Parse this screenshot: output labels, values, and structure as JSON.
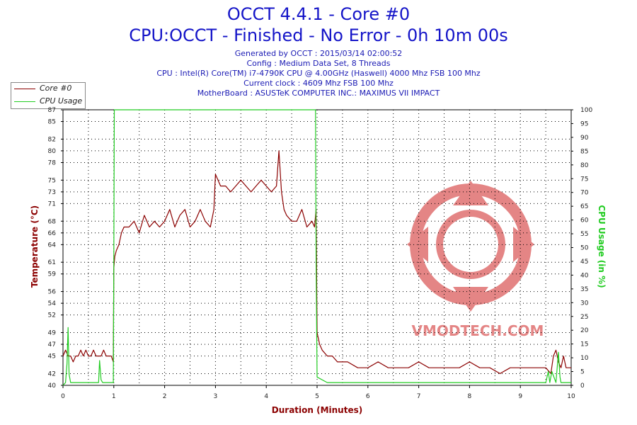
{
  "header": {
    "title": "OCCT 4.4.1 - Core #0",
    "subtitle": "CPU:OCCT - Finished - No Error - 0h 10m 00s",
    "info_lines": [
      "Generated by OCCT : 2015/03/14 02:00:52",
      "Config : Medium Data Set, 8 Threads",
      "CPU : Intel(R) Core(TM) i7-4790K CPU @ 4.00GHz (Haswell) 4000 Mhz FSB 100 Mhz",
      "Current clock : 4609 Mhz FSB 100 Mhz",
      "MotherBoard : ASUSTeK COMPUTER INC.: MAXIMUS VII IMPACT"
    ]
  },
  "watermark_text": "VMODTECH.COM",
  "colors": {
    "temp": "#8b0000",
    "cpu": "#22cc22",
    "title": "#1414c8",
    "grid": "#000000",
    "watermark": "#e07070"
  },
  "chart_data": {
    "type": "line",
    "xlabel": "Duration (Minutes)",
    "ylabel": "Temperature (°C)",
    "y2label": "CPU Usage (in %)",
    "xlim": [
      0,
      10
    ],
    "ylim": [
      40,
      87
    ],
    "y2lim": [
      0,
      100
    ],
    "x_ticks": [
      "0",
      "1",
      "2",
      "3",
      "4",
      "5",
      "6",
      "7",
      "8",
      "9",
      "10"
    ],
    "y_ticks": [
      40,
      42,
      45,
      47,
      49,
      52,
      54,
      56,
      59,
      61,
      64,
      66,
      68,
      71,
      73,
      75,
      78,
      80,
      82,
      85,
      87
    ],
    "y2_ticks": [
      0,
      5,
      10,
      15,
      20,
      25,
      30,
      35,
      40,
      45,
      50,
      55,
      60,
      65,
      70,
      75,
      80,
      85,
      90,
      95,
      100
    ],
    "grid": true,
    "legend_position": "top-left",
    "series": [
      {
        "name": "Core #0",
        "axis": "left",
        "x": [
          0,
          0.05,
          0.1,
          0.15,
          0.2,
          0.25,
          0.3,
          0.35,
          0.4,
          0.45,
          0.5,
          0.55,
          0.6,
          0.65,
          0.7,
          0.75,
          0.8,
          0.85,
          0.9,
          0.95,
          0.99,
          1.0,
          1.02,
          1.05,
          1.1,
          1.15,
          1.2,
          1.3,
          1.4,
          1.5,
          1.6,
          1.7,
          1.8,
          1.9,
          2.0,
          2.1,
          2.2,
          2.3,
          2.4,
          2.5,
          2.6,
          2.7,
          2.8,
          2.9,
          2.97,
          3.0,
          3.05,
          3.1,
          3.2,
          3.3,
          3.4,
          3.5,
          3.6,
          3.7,
          3.8,
          3.9,
          4.0,
          4.1,
          4.2,
          4.25,
          4.3,
          4.35,
          4.4,
          4.5,
          4.6,
          4.7,
          4.8,
          4.9,
          4.95,
          4.98,
          5.0,
          5.05,
          5.1,
          5.2,
          5.3,
          5.4,
          5.5,
          5.6,
          5.8,
          6.0,
          6.2,
          6.4,
          6.6,
          6.8,
          7.0,
          7.2,
          7.4,
          7.6,
          7.8,
          8.0,
          8.2,
          8.4,
          8.6,
          8.8,
          9.0,
          9.2,
          9.4,
          9.5,
          9.6,
          9.65,
          9.7,
          9.75,
          9.8,
          9.85,
          9.9,
          9.95,
          10.0
        ],
        "values": [
          45,
          46,
          45,
          45,
          44,
          45,
          45,
          46,
          45,
          46,
          45,
          45,
          46,
          45,
          45,
          45,
          46,
          45,
          45,
          45,
          44,
          60,
          62,
          63,
          64,
          66,
          67,
          67,
          68,
          66,
          69,
          67,
          68,
          67,
          68,
          70,
          67,
          69,
          70,
          67,
          68,
          70,
          68,
          67,
          70,
          76,
          75,
          74,
          74,
          73,
          74,
          75,
          74,
          73,
          74,
          75,
          74,
          73,
          74,
          80,
          73,
          70,
          69,
          68,
          68,
          70,
          67,
          68,
          67,
          70,
          49,
          47,
          46,
          45,
          45,
          44,
          44,
          44,
          43,
          43,
          44,
          43,
          43,
          43,
          44,
          43,
          43,
          43,
          43,
          44,
          43,
          43,
          42,
          43,
          43,
          43,
          43,
          43,
          42,
          45,
          46,
          44,
          43,
          45,
          43,
          43,
          43
        ]
      },
      {
        "name": "CPU Usage",
        "axis": "right",
        "x": [
          0,
          0.05,
          0.08,
          0.1,
          0.12,
          0.15,
          0.2,
          0.5,
          0.7,
          0.72,
          0.75,
          0.78,
          0.8,
          0.99,
          1.0,
          1.01,
          4.97,
          4.98,
          5.0,
          5.2,
          6.0,
          7.0,
          8.0,
          9.0,
          9.5,
          9.55,
          9.58,
          9.62,
          9.7,
          9.75,
          9.78,
          9.8,
          9.83,
          9.9,
          10.0
        ],
        "values": [
          0,
          1,
          8,
          21,
          4,
          1,
          1,
          1,
          1,
          9,
          2,
          1,
          1,
          1,
          45,
          100,
          100,
          45,
          3,
          1,
          1,
          1,
          1,
          1,
          1,
          5,
          1,
          5,
          1,
          12,
          3,
          1,
          1,
          1,
          1
        ]
      }
    ]
  }
}
